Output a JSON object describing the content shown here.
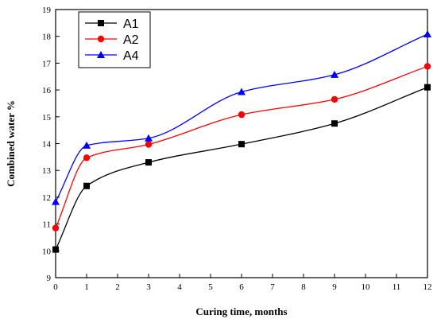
{
  "chart_data": {
    "type": "line",
    "xlabel": "Curing time, months",
    "ylabel": "Combined water %",
    "xlim": [
      0,
      12
    ],
    "ylim": [
      9,
      19
    ],
    "x_ticks": [
      0,
      1,
      2,
      3,
      4,
      5,
      6,
      7,
      8,
      9,
      10,
      11,
      12
    ],
    "y_ticks": [
      9,
      10,
      11,
      12,
      13,
      14,
      15,
      16,
      17,
      18,
      19
    ],
    "grid": false,
    "legend_position": "top-left",
    "series": [
      {
        "name": "A1",
        "color": "#000000",
        "marker": "square",
        "x": [
          0,
          1,
          3,
          6,
          9,
          12
        ],
        "y": [
          10.05,
          12.42,
          13.3,
          13.98,
          14.75,
          16.1
        ]
      },
      {
        "name": "A2",
        "color": "#ff0000",
        "marker": "circle",
        "x": [
          0,
          1,
          3,
          6,
          9,
          12
        ],
        "y": [
          10.85,
          13.47,
          13.97,
          15.08,
          15.65,
          16.88
        ]
      },
      {
        "name": "A4",
        "color": "#0000ff",
        "marker": "triangle",
        "x": [
          0,
          1,
          3,
          6,
          9,
          12
        ],
        "y": [
          11.83,
          13.93,
          14.2,
          15.93,
          16.57,
          18.08
        ]
      }
    ]
  }
}
